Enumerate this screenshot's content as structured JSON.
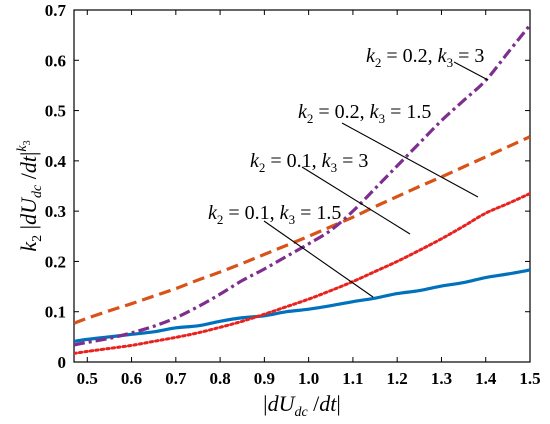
{
  "chart_data": {
    "type": "line",
    "xlabel": "|dU_dc / dt|",
    "ylabel": "k_2 |dU_dc / dt|^k_3",
    "xlim": [
      0.47,
      1.5
    ],
    "ylim": [
      0,
      0.7
    ],
    "x_ticks": [
      "0.5",
      "0.6",
      "0.7",
      "0.8",
      "0.9",
      "1.0",
      "1.1",
      "1.2",
      "1.3",
      "1.4",
      "1.5"
    ],
    "y_ticks": [
      "0",
      "0.1",
      "0.2",
      "0.3",
      "0.4",
      "0.5",
      "0.6",
      "0.7"
    ],
    "grid": false,
    "legend": "none",
    "x": [
      0.47,
      0.5,
      0.55,
      0.6,
      0.65,
      0.7,
      0.75,
      0.8,
      0.85,
      0.9,
      0.95,
      1.0,
      1.05,
      1.1,
      1.15,
      1.2,
      1.25,
      1.3,
      1.35,
      1.4,
      1.45,
      1.5
    ],
    "series": [
      {
        "name": "k_2 = 0.1, k_3 = 1.5",
        "color": "#0072BD",
        "dash": "solid",
        "values": [
          0.041,
          0.045,
          0.05,
          0.055,
          0.06,
          0.068,
          0.072,
          0.081,
          0.088,
          0.092,
          0.1,
          0.105,
          0.112,
          0.12,
          0.127,
          0.136,
          0.142,
          0.151,
          0.158,
          0.168,
          0.175,
          0.183
        ]
      },
      {
        "name": "k_2 = 0.2, k_3 = 1.5",
        "color": "#D95319",
        "dash": "dashed",
        "values": [
          0.077,
          0.087,
          0.102,
          0.116,
          0.131,
          0.146,
          0.163,
          0.179,
          0.196,
          0.214,
          0.232,
          0.25,
          0.269,
          0.288,
          0.309,
          0.329,
          0.349,
          0.368,
          0.388,
          0.408,
          0.428,
          0.448
        ]
      },
      {
        "name": "k_2 = 0.1, k_3 = 3",
        "color": "#E8231F",
        "dash": "dotted",
        "values": [
          0.017,
          0.021,
          0.027,
          0.033,
          0.041,
          0.049,
          0.058,
          0.069,
          0.081,
          0.095,
          0.11,
          0.125,
          0.142,
          0.16,
          0.18,
          0.2,
          0.222,
          0.245,
          0.27,
          0.296,
          0.315,
          0.335
        ]
      },
      {
        "name": "k_2 = 0.2, k_3 = 3",
        "color": "#7E2F8E",
        "dash": "dashdot",
        "values": [
          0.034,
          0.039,
          0.047,
          0.058,
          0.071,
          0.088,
          0.11,
          0.135,
          0.162,
          0.185,
          0.21,
          0.235,
          0.262,
          0.3,
          0.345,
          0.39,
          0.435,
          0.48,
          0.52,
          0.56,
          0.615,
          0.67
        ]
      }
    ],
    "annotations": [
      {
        "k2": "0.2",
        "k3": "3"
      },
      {
        "k2": "0.2",
        "k3": "1.5"
      },
      {
        "k2": "0.1",
        "k3": "3"
      },
      {
        "k2": "0.1",
        "k3": "1.5"
      }
    ]
  }
}
